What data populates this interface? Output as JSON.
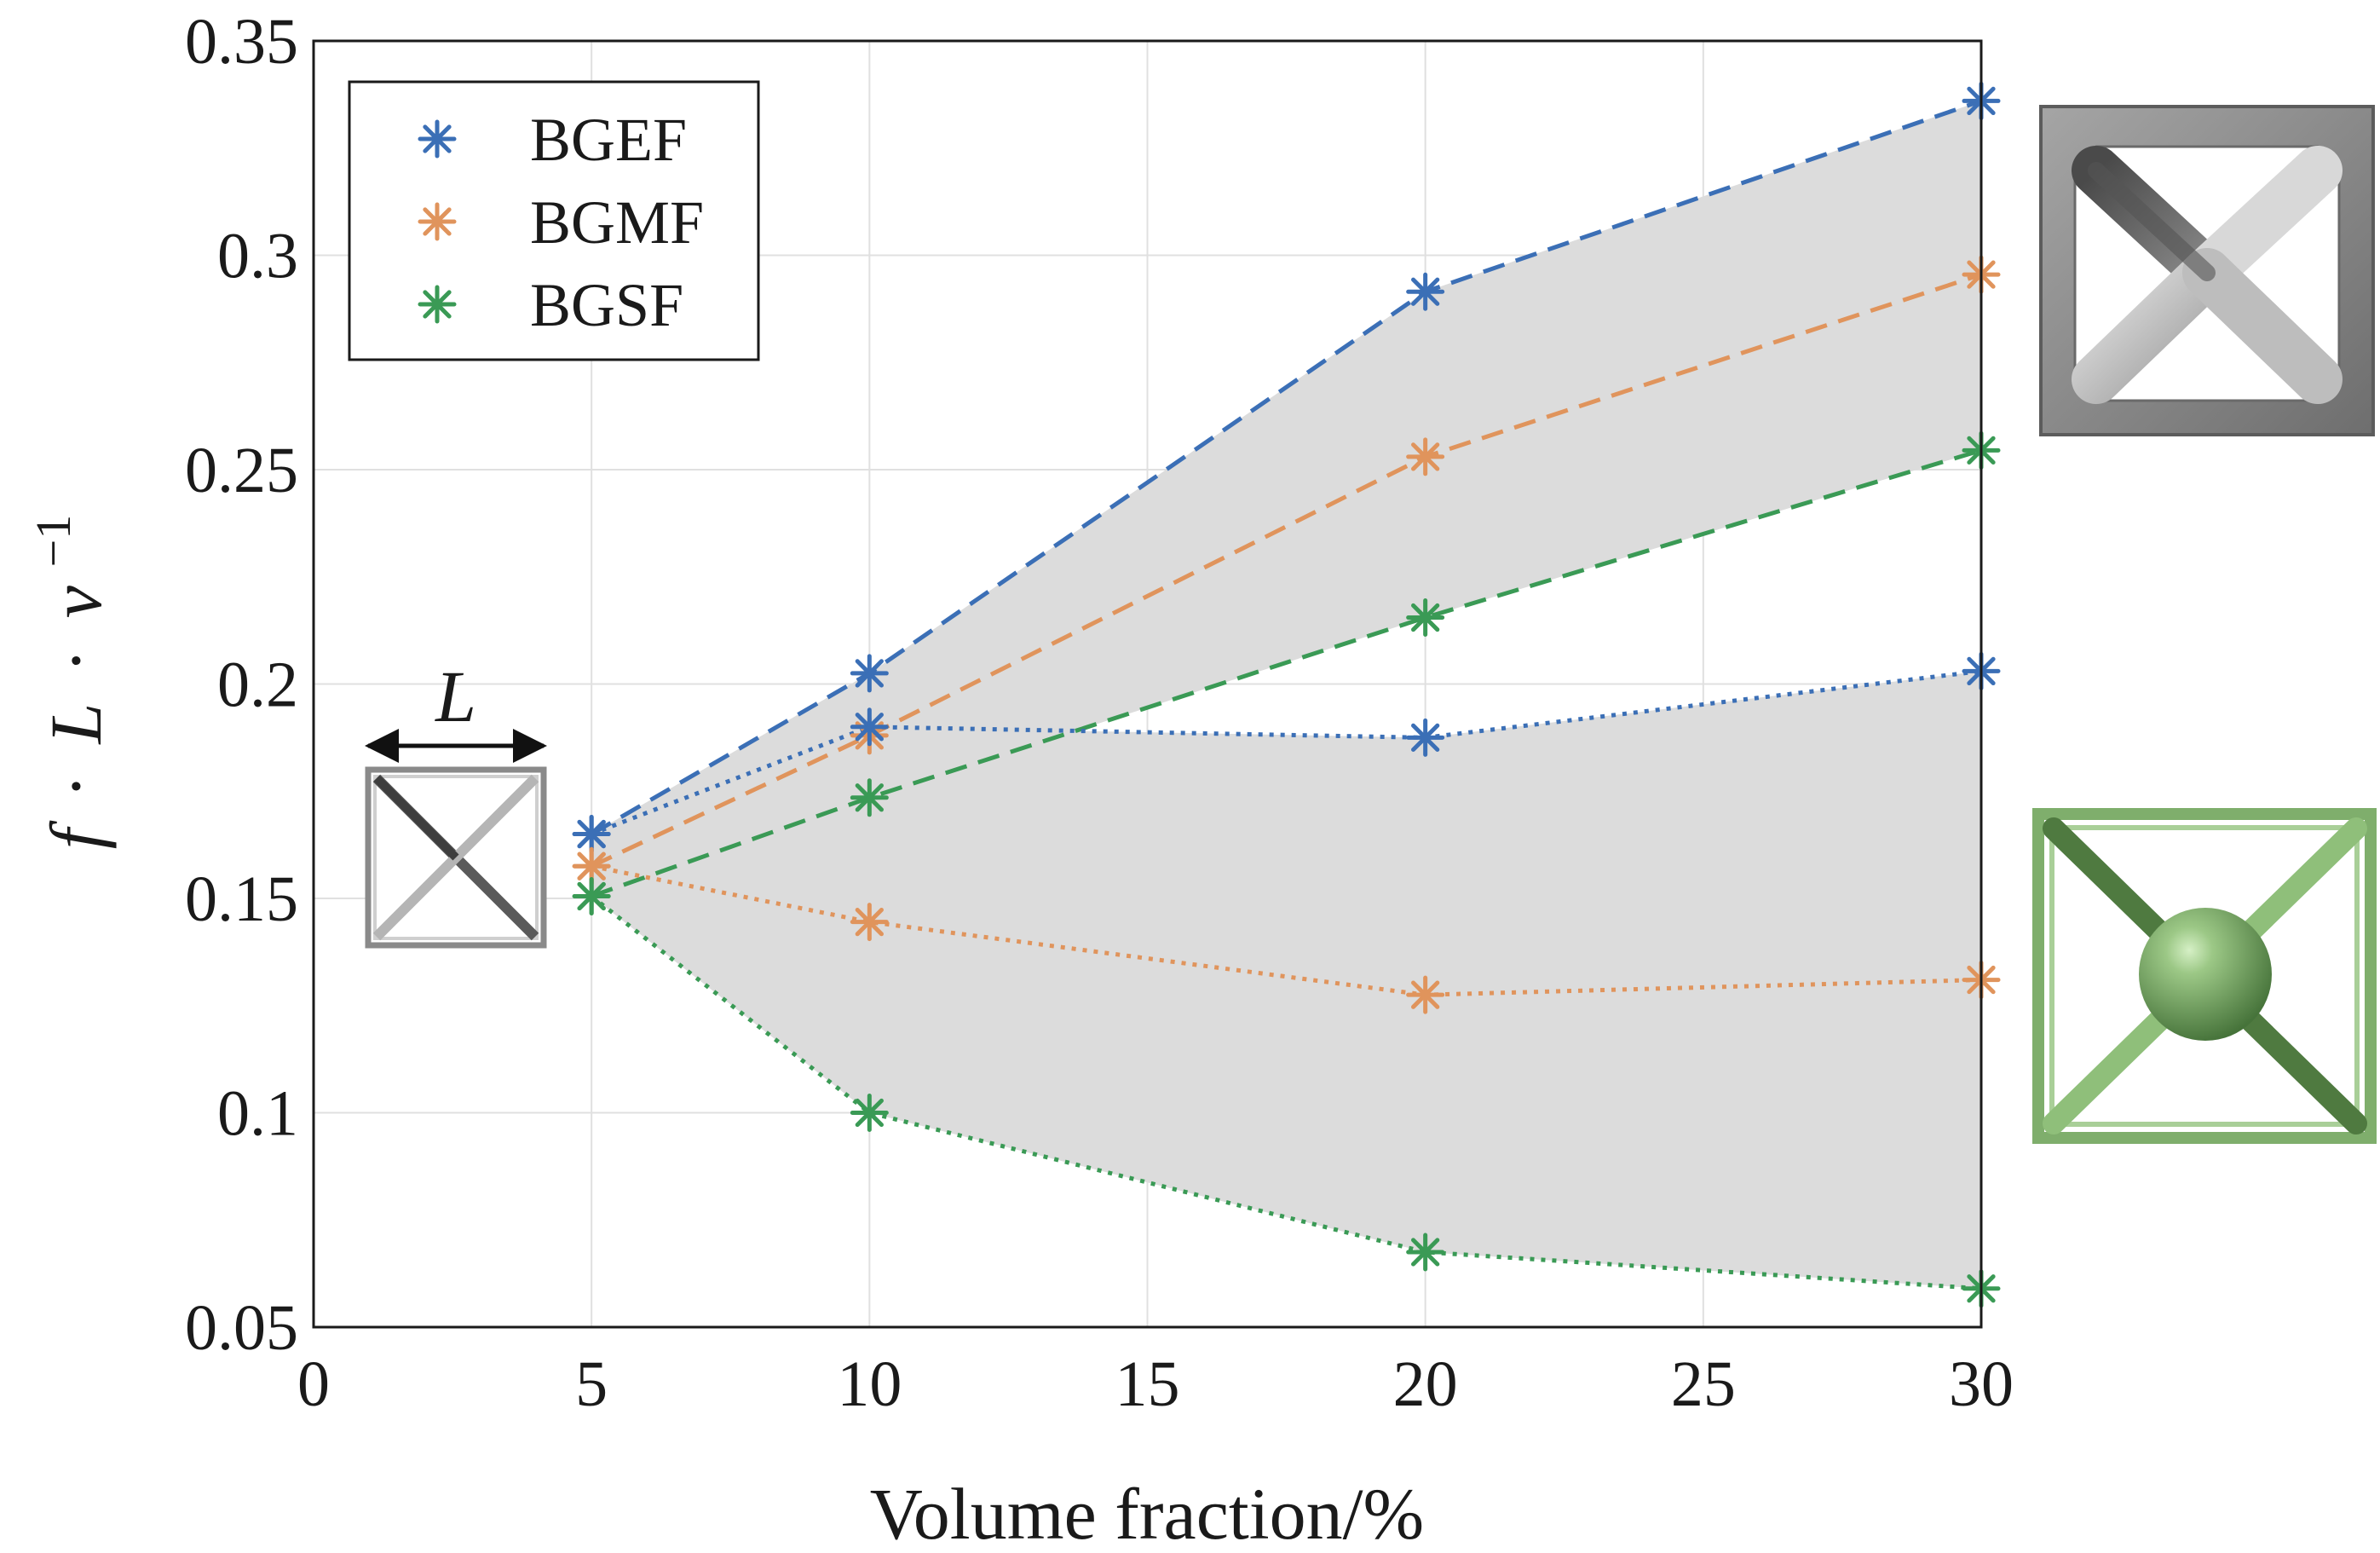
{
  "chart_data": {
    "type": "line",
    "title": "",
    "xlabel": "Volume fraction/%",
    "ylabel": {
      "f": "f",
      "dot1": "·",
      "L": "L",
      "dot2": "·",
      "v": "v",
      "exp": "−1"
    },
    "xlim": [
      0,
      30
    ],
    "ylim": [
      0.05,
      0.35
    ],
    "xticks": [
      0,
      5,
      10,
      15,
      20,
      25,
      30
    ],
    "yticks": [
      0.05,
      0.1,
      0.15,
      0.2,
      0.25,
      0.3,
      0.35
    ],
    "xtick_labels": [
      "0",
      "5",
      "10",
      "15",
      "20",
      "25",
      "30"
    ],
    "ytick_labels": [
      "0.05",
      "0.1",
      "0.15",
      "0.2",
      "0.25",
      "0.3",
      "0.35"
    ],
    "grid": true,
    "legend_position": "top-left",
    "x": [
      5,
      10,
      20,
      30
    ],
    "series": [
      {
        "name": "BGEF",
        "style": "dashed",
        "color": "#3b6fb6",
        "values": [
          0.165,
          0.2025,
          0.2915,
          0.336
        ]
      },
      {
        "name": "BGMF",
        "style": "dashed",
        "color": "#e0945c",
        "values": [
          0.1575,
          0.188,
          0.253,
          0.2955
        ]
      },
      {
        "name": "BGSF",
        "style": "dashed",
        "color": "#3a9a55",
        "values": [
          0.1505,
          0.1735,
          0.2155,
          0.2545
        ]
      },
      {
        "name": "BGEF",
        "style": "dotted",
        "color": "#3b6fb6",
        "values": [
          0.165,
          0.19,
          0.1875,
          0.203
        ]
      },
      {
        "name": "BGMF",
        "style": "dotted",
        "color": "#e0945c",
        "values": [
          0.1575,
          0.1445,
          0.1275,
          0.131
        ]
      },
      {
        "name": "BGSF",
        "style": "dotted",
        "color": "#3a9a55",
        "values": [
          0.1505,
          0.1,
          0.0675,
          0.059
        ]
      }
    ],
    "legend": [
      {
        "label": "BGEF",
        "color": "#3b6fb6"
      },
      {
        "label": "BGMF",
        "color": "#e0945c"
      },
      {
        "label": "BGSF",
        "color": "#3a9a55"
      }
    ],
    "shaded_bands": [
      {
        "upper_series": 0,
        "lower_series": 2,
        "color": "#dcdcdc"
      },
      {
        "upper_series": 3,
        "lower_series": 5,
        "color": "#dcdcdc"
      }
    ],
    "annotations": {
      "dimension_label": "L"
    }
  },
  "colors": {
    "axis": "#1a1a1a",
    "grid": "#e0e0e0",
    "band": "#dcdcdc",
    "gray_cell": "#8a8a8a",
    "green_cell": "#7fae6c"
  },
  "icons": {
    "unit_cell_small": "bcc-lattice-cell-icon",
    "unit_cell_gray": "gray-bcc-lattice-render",
    "unit_cell_green": "green-sphere-node-lattice-render"
  }
}
